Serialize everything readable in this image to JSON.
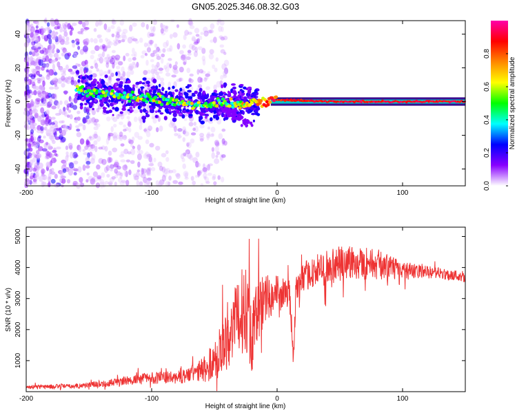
{
  "title": "GN05.2025.346.08.32.G03",
  "colors": {
    "snr_line": "#ee3333",
    "colormap": [
      "#ffffff",
      "#8800ff",
      "#0000ff",
      "#00ffff",
      "#00ff00",
      "#ffff00",
      "#ff8800",
      "#ff0000",
      "#ff00aa"
    ]
  },
  "chart_data": [
    {
      "type": "heatmap",
      "name": "spectrogram",
      "xlabel": "Height of straight line (km)",
      "ylabel": "Frequency (Hz)",
      "xlim": [
        -200,
        150
      ],
      "ylim": [
        -50,
        48
      ],
      "xticks": [
        -200,
        -100,
        0,
        100
      ],
      "yticks": [
        -40,
        -20,
        0,
        20,
        40
      ],
      "colorbar": {
        "label": "Normalized spectral amplitude",
        "range": [
          0,
          1
        ],
        "ticks": [
          0.0,
          0.2,
          0.4,
          0.6,
          0.8
        ]
      },
      "ridge": {
        "description_points": [
          {
            "x": -155,
            "freq": 7,
            "amp": 0.45
          },
          {
            "x": -120,
            "freq": 3,
            "amp": 0.5
          },
          {
            "x": -90,
            "freq": 1,
            "amp": 0.55
          },
          {
            "x": -60,
            "freq": -2,
            "amp": 0.5
          },
          {
            "x": -30,
            "freq": -1,
            "amp": 0.55
          },
          {
            "x": 0,
            "freq": 1,
            "amp": 0.85
          },
          {
            "x": 50,
            "freq": 0,
            "amp": 0.9
          },
          {
            "x": 100,
            "freq": 0,
            "amp": 0.9
          },
          {
            "x": 150,
            "freq": 0,
            "amp": 0.9
          }
        ]
      }
    },
    {
      "type": "line",
      "name": "snr",
      "xlabel": "Height of straight line (km)",
      "ylabel": "SNR (10 * v/v)",
      "xlim": [
        -200,
        150
      ],
      "ylim": [
        0,
        5300
      ],
      "xticks": [
        -200,
        -100,
        0,
        100
      ],
      "yticks": [
        1000,
        2000,
        3000,
        4000,
        5000
      ],
      "envelope": {
        "x": [
          -200,
          -160,
          -130,
          -100,
          -80,
          -65,
          -55,
          -45,
          -35,
          -25,
          -20,
          -15,
          -10,
          0,
          10,
          13,
          15,
          25,
          40,
          60,
          80,
          100,
          120,
          150
        ],
        "mean": [
          150,
          180,
          300,
          450,
          450,
          600,
          800,
          1300,
          2100,
          2800,
          1800,
          2600,
          3000,
          3200,
          3100,
          1100,
          3300,
          3800,
          4000,
          4200,
          4100,
          3900,
          3850,
          3700
        ],
        "spread": [
          60,
          80,
          120,
          200,
          200,
          300,
          500,
          900,
          1100,
          1500,
          1200,
          1200,
          800,
          600,
          500,
          300,
          500,
          500,
          600,
          600,
          500,
          300,
          200,
          180
        ]
      }
    }
  ]
}
